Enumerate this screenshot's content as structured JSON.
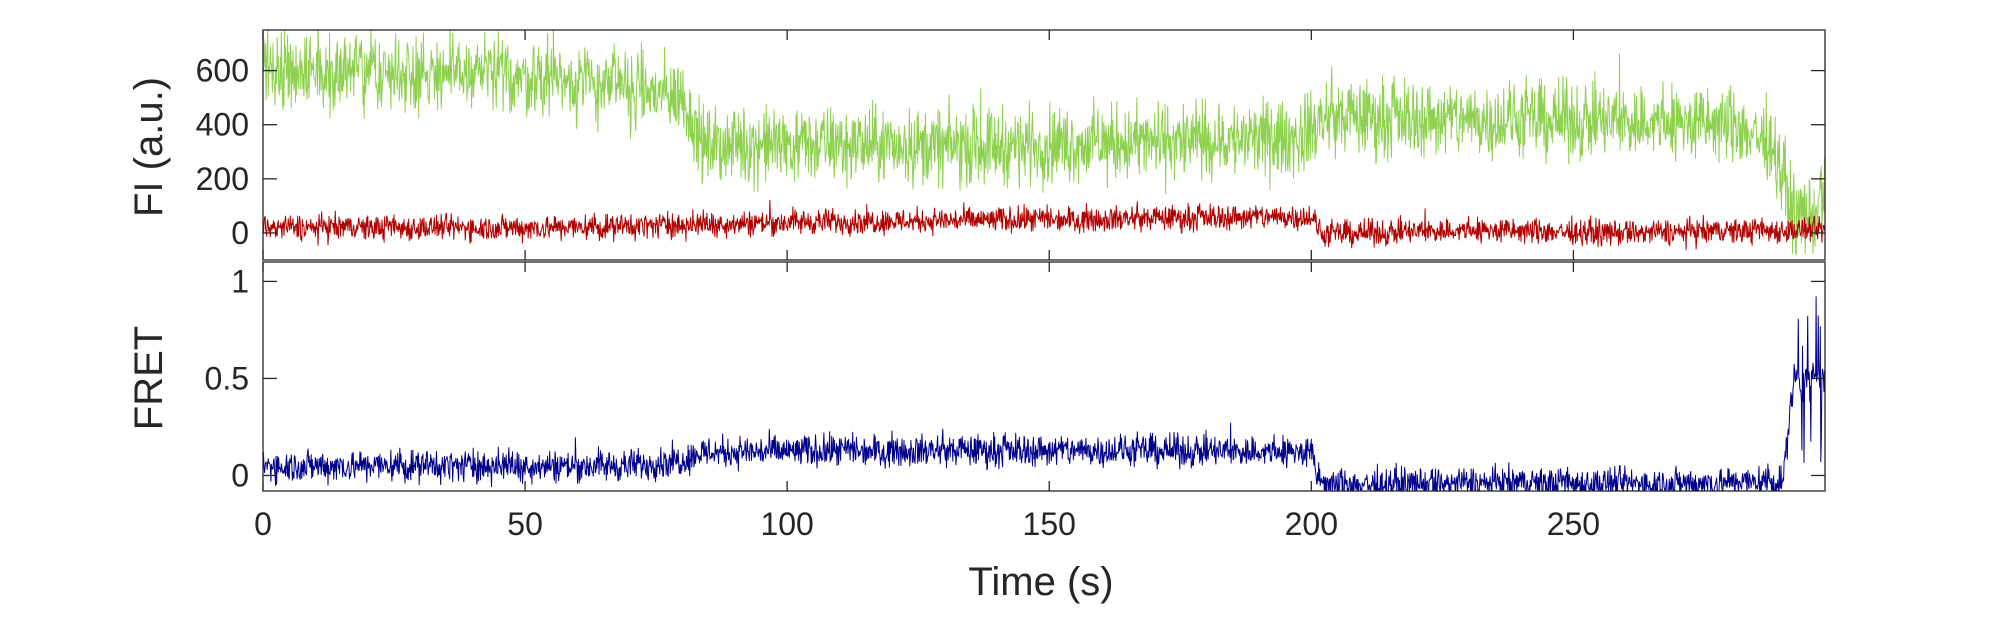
{
  "chart_data": [
    {
      "type": "line",
      "panel": "top",
      "xlim": [
        0,
        298
      ],
      "ylim": [
        -100,
        750
      ],
      "ylabel": "FI (a.u.)",
      "xlabel": "",
      "grid": false,
      "legend": "none",
      "yticks": [
        0,
        200,
        400,
        600
      ],
      "ytick_labels": [
        "0",
        "200",
        "400",
        "600"
      ],
      "xticks": [
        0,
        50,
        100,
        150,
        200,
        250
      ],
      "xtick_labels_shown": false,
      "series": [
        {
          "color": "#8ed14f",
          "baseline_x": [
            0,
            20,
            40,
            60,
            70,
            80,
            84,
            100,
            130,
            160,
            180,
            198,
            203,
            230,
            260,
            280,
            288,
            292,
            296,
            298
          ],
          "baseline_y": [
            610,
            600,
            590,
            560,
            530,
            500,
            320,
            330,
            320,
            330,
            340,
            350,
            430,
            420,
            410,
            400,
            330,
            70,
            60,
            150
          ],
          "noise_amplitude": 120
        },
        {
          "color": "#b00000",
          "baseline_x": [
            0,
            60,
            100,
            150,
            190,
            200,
            202,
            230,
            260,
            290,
            298
          ],
          "baseline_y": [
            20,
            20,
            40,
            50,
            60,
            60,
            -5,
            10,
            0,
            10,
            10
          ],
          "noise_amplitude": 40
        }
      ]
    },
    {
      "type": "line",
      "panel": "bottom",
      "xlim": [
        0,
        298
      ],
      "ylim": [
        -0.08,
        1.1
      ],
      "ylabel": "FRET",
      "xlabel": "Time (s)",
      "grid": false,
      "legend": "none",
      "yticks": [
        0,
        0.5,
        1
      ],
      "ytick_labels": [
        "0",
        "0.5",
        "1"
      ],
      "xticks": [
        0,
        50,
        100,
        150,
        200,
        250
      ],
      "xtick_labels": [
        "0",
        "50",
        "100",
        "150",
        "200",
        "250"
      ],
      "series": [
        {
          "color": "#00008b",
          "baseline_x": [
            0,
            70,
            80,
            84,
            120,
            160,
            200,
            201,
            203,
            230,
            270,
            290,
            292,
            298
          ],
          "baseline_y": [
            0.05,
            0.05,
            0.08,
            0.12,
            0.13,
            0.13,
            0.12,
            0.0,
            -0.05,
            -0.04,
            -0.04,
            -0.03,
            0.5,
            0.5
          ],
          "noise_amplitude": 0.07
        }
      ]
    }
  ]
}
